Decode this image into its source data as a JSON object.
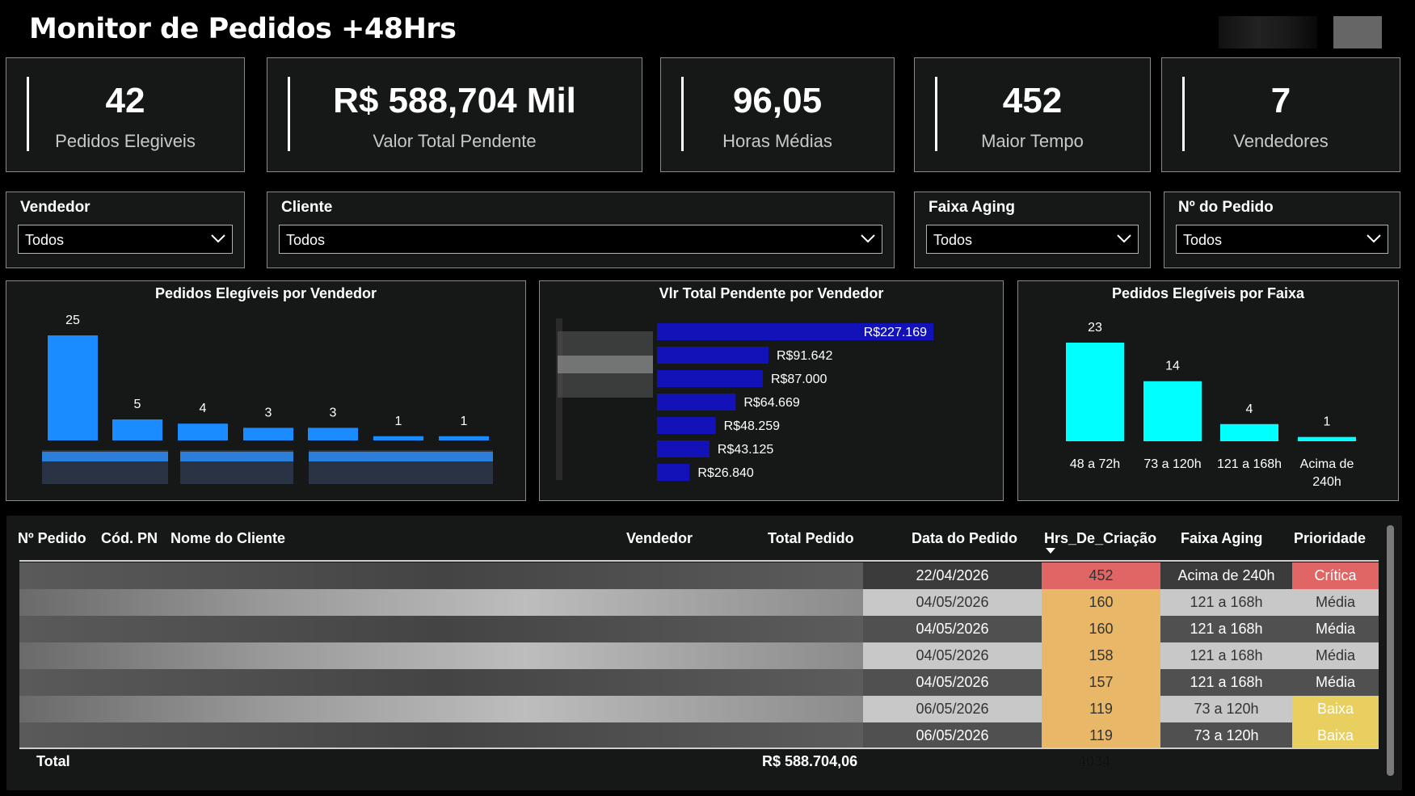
{
  "header": {
    "title": "Monitor de Pedidos +48Hrs"
  },
  "kpis": [
    {
      "value": "42",
      "label": "Pedidos Elegiveis"
    },
    {
      "value": "R$ 588,704 Mil",
      "label": "Valor Total Pendente"
    },
    {
      "value": "96,05",
      "label": "Horas Médias"
    },
    {
      "value": "452",
      "label": "Maior Tempo"
    },
    {
      "value": "7",
      "label": "Vendedores"
    }
  ],
  "filters": [
    {
      "label": "Vendedor",
      "value": "Todos"
    },
    {
      "label": "Cliente",
      "value": "Todos"
    },
    {
      "label": "Faixa Aging",
      "value": "Todos"
    },
    {
      "label": "Nº do Pedido",
      "value": "Todos"
    }
  ],
  "charts": {
    "vendor_count_title": "Pedidos Elegíveis por Vendedor",
    "vendor_value_title": "Vlr Total Pendente por Vendedor",
    "faixa_title": "Pedidos Elegíveis por Faixa"
  },
  "chart_data": [
    {
      "type": "bar",
      "title": "Pedidos Elegíveis por Vendedor",
      "values": [
        25,
        5,
        4,
        3,
        3,
        1,
        1
      ],
      "labels": [
        "25",
        "5",
        "4",
        "3",
        "3",
        "1",
        "1"
      ],
      "color": "#1a8cff"
    },
    {
      "type": "bar",
      "orientation": "horizontal",
      "title": "Vlr Total Pendente por Vendedor",
      "values": [
        227169,
        91642,
        87000,
        64669,
        48259,
        43125,
        26840
      ],
      "labels": [
        "R$227.169",
        "R$91.642",
        "R$87.000",
        "R$64.669",
        "R$48.259",
        "R$43.125",
        "R$26.840"
      ],
      "color": "#1212b8"
    },
    {
      "type": "bar",
      "title": "Pedidos Elegíveis por Faixa",
      "categories": [
        "48 a 72h",
        "73 a 120h",
        "121 a 168h",
        "Acima de 240h"
      ],
      "values": [
        23,
        14,
        4,
        1
      ],
      "labels": [
        "23",
        "14",
        "4",
        "1"
      ],
      "color": "#00ffff"
    }
  ],
  "table": {
    "headers": {
      "pedido": "Nº Pedido",
      "cod": "Cód. PN",
      "cliente": "Nome do Cliente",
      "vendedor": "Vendedor",
      "total": "Total Pedido",
      "data": "Data do Pedido",
      "hrs": "Hrs_De_Criação",
      "faixa": "Faixa Aging",
      "prioridade": "Prioridade"
    },
    "rows": [
      {
        "data": "22/04/2026",
        "hrs": "452",
        "faixa": "Acima de 240h",
        "prioridade": "Crítica"
      },
      {
        "data": "04/05/2026",
        "hrs": "160",
        "faixa": "121 a 168h",
        "prioridade": "Média"
      },
      {
        "data": "04/05/2026",
        "hrs": "160",
        "faixa": "121 a 168h",
        "prioridade": "Média"
      },
      {
        "data": "04/05/2026",
        "hrs": "158",
        "faixa": "121 a 168h",
        "prioridade": "Média"
      },
      {
        "data": "04/05/2026",
        "hrs": "157",
        "faixa": "121 a 168h",
        "prioridade": "Média"
      },
      {
        "data": "06/05/2026",
        "hrs": "119",
        "faixa": "73 a 120h",
        "prioridade": "Baixa"
      },
      {
        "data": "06/05/2026",
        "hrs": "119",
        "faixa": "73 a 120h",
        "prioridade": "Baixa"
      }
    ],
    "total_label": "Total",
    "total_value": "R$ 588.704,06",
    "total_hrs": "4034"
  },
  "colors": {
    "critica": "#e06666",
    "media": "#c9c9c9",
    "baixa": "#e8cf60",
    "hrs_high": "#e06666",
    "hrs_mid": "#e8b868",
    "hrs_low": "#e8c46a"
  }
}
